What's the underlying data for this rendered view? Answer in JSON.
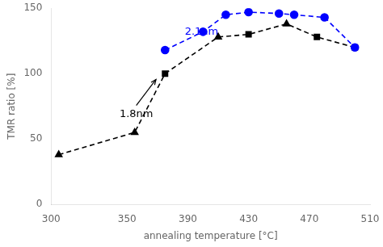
{
  "chart_data": {
    "type": "line",
    "xlabel": "annealing temperature [°C]",
    "ylabel": "TMR ratio [%]",
    "xlim": [
      300,
      510
    ],
    "ylim": [
      0,
      150
    ],
    "xticks": [
      300,
      350,
      390,
      430,
      470,
      510
    ],
    "yticks": [
      0,
      50,
      100,
      150
    ],
    "grid": false,
    "series": [
      {
        "color": "black",
        "line_style": "dashed",
        "marker": [
          "triangle",
          "triangle",
          "square",
          "triangle",
          "square",
          "triangle",
          "square",
          "square"
        ],
        "x": [
          305,
          355,
          375,
          410,
          430,
          455,
          475,
          500
        ],
        "values": [
          38,
          55,
          100,
          128,
          130,
          138,
          128,
          120
        ]
      },
      {
        "color": "blue",
        "line_style": "dashed",
        "marker": "circle",
        "x": [
          375,
          400,
          415,
          430,
          450,
          460,
          480,
          500
        ],
        "values": [
          118,
          132,
          145,
          147,
          146,
          145,
          143,
          120
        ]
      }
    ],
    "annotations": [
      {
        "text": "1.8nm",
        "x": 345,
        "y": 67,
        "arrow_to": [
          370,
          97
        ],
        "color": "black"
      },
      {
        "text": "2.1nm",
        "x": 388,
        "y": 130,
        "color": "blue"
      }
    ]
  }
}
